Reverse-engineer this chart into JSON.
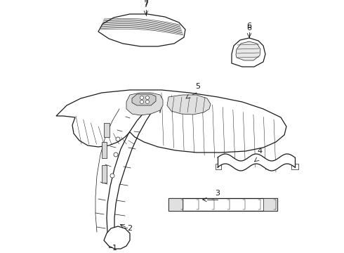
{
  "bg_color": "#ffffff",
  "line_color": "#1a1a1a",
  "fig_width": 4.9,
  "fig_height": 3.6,
  "dpi": 100,
  "label_fontsize": 8
}
